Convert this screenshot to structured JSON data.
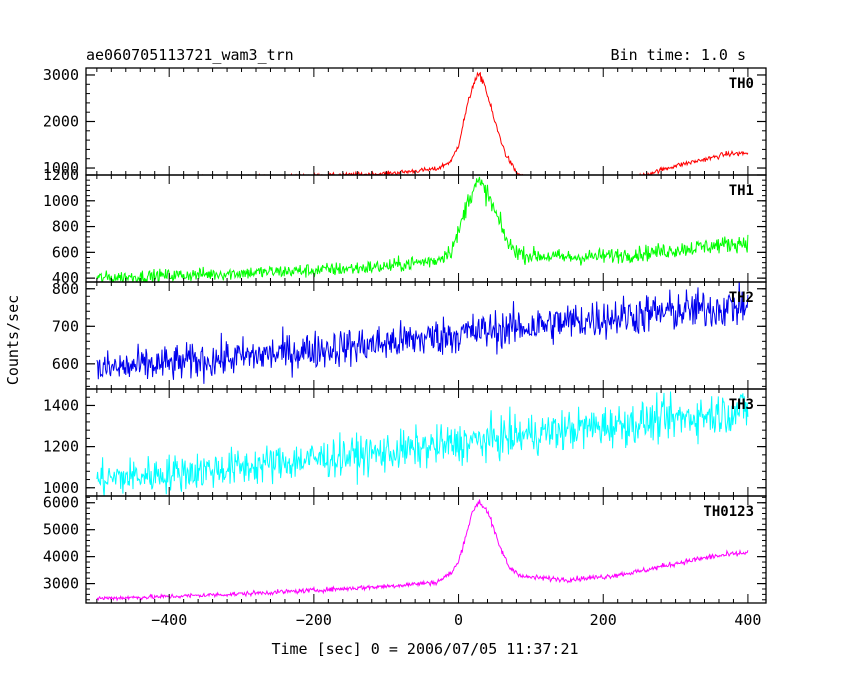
{
  "chart_data": {
    "type": "line",
    "title": "ae060705113721_wam3_trn",
    "bin_time": "Bin time: 1.0 s",
    "xlabel": "Time [sec] 0 = 2006/07/05 11:37:21",
    "ylabel": "Counts/sec",
    "xlim": [
      -515,
      425
    ],
    "x_ticks": [
      -400,
      -200,
      0,
      200,
      400
    ],
    "x_tick_labels": [
      "−400",
      "−200",
      "0",
      "200",
      "400"
    ],
    "x_range": [
      -500,
      400
    ],
    "panels": [
      {
        "name": "TH0",
        "color": "#ff0000",
        "ylim": [
          850,
          3150
        ],
        "y_ticks": [
          1000,
          2000,
          3000
        ],
        "y_tick_labels": [
          "1000",
          "2000",
          "3000"
        ],
        "noise": 28,
        "profile": [
          [
            -500,
            750
          ],
          [
            -400,
            780
          ],
          [
            -300,
            800
          ],
          [
            -200,
            830
          ],
          [
            -100,
            880
          ],
          [
            -30,
            980
          ],
          [
            -10,
            1150
          ],
          [
            0,
            1500
          ],
          [
            10,
            2200
          ],
          [
            20,
            2800
          ],
          [
            28,
            3000
          ],
          [
            35,
            2850
          ],
          [
            50,
            2000
          ],
          [
            65,
            1300
          ],
          [
            80,
            900
          ],
          [
            100,
            730
          ],
          [
            150,
            680
          ],
          [
            200,
            700
          ],
          [
            250,
            820
          ],
          [
            300,
            1050
          ],
          [
            350,
            1220
          ],
          [
            370,
            1300
          ],
          [
            400,
            1320
          ]
        ]
      },
      {
        "name": "TH1",
        "color": "#00ff00",
        "ylim": [
          370,
          1200
        ],
        "y_ticks": [
          400,
          600,
          800,
          1000,
          1200
        ],
        "y_tick_labels": [
          "400",
          "600",
          "800",
          "1000",
          "1200"
        ],
        "noise": 25,
        "profile": [
          [
            -500,
            400
          ],
          [
            -400,
            420
          ],
          [
            -300,
            440
          ],
          [
            -200,
            460
          ],
          [
            -100,
            490
          ],
          [
            -30,
            540
          ],
          [
            -10,
            620
          ],
          [
            0,
            750
          ],
          [
            10,
            950
          ],
          [
            20,
            1100
          ],
          [
            28,
            1140
          ],
          [
            40,
            1050
          ],
          [
            55,
            850
          ],
          [
            70,
            650
          ],
          [
            90,
            580
          ],
          [
            150,
            560
          ],
          [
            200,
            570
          ],
          [
            250,
            590
          ],
          [
            300,
            620
          ],
          [
            350,
            650
          ],
          [
            400,
            680
          ]
        ]
      },
      {
        "name": "TH2",
        "color": "#0000ee",
        "ylim": [
          533,
          818
        ],
        "y_ticks": [
          600,
          700,
          800
        ],
        "y_tick_labels": [
          "600",
          "700",
          "800"
        ],
        "noise": 24,
        "profile": [
          [
            -500,
            585
          ],
          [
            -400,
            600
          ],
          [
            -300,
            618
          ],
          [
            -200,
            637
          ],
          [
            -100,
            655
          ],
          [
            0,
            680
          ],
          [
            100,
            700
          ],
          [
            200,
            722
          ],
          [
            300,
            740
          ],
          [
            400,
            755
          ]
        ]
      },
      {
        "name": "TH3",
        "color": "#00ffff",
        "ylim": [
          960,
          1480
        ],
        "y_ticks": [
          1000,
          1200,
          1400
        ],
        "y_tick_labels": [
          "1000",
          "1200",
          "1400"
        ],
        "noise": 45,
        "profile": [
          [
            -500,
            1040
          ],
          [
            -400,
            1070
          ],
          [
            -300,
            1100
          ],
          [
            -200,
            1140
          ],
          [
            -100,
            1170
          ],
          [
            0,
            1215
          ],
          [
            100,
            1260
          ],
          [
            200,
            1300
          ],
          [
            300,
            1335
          ],
          [
            400,
            1380
          ]
        ]
      },
      {
        "name": "TH0123",
        "color": "#ff00ff",
        "ylim": [
          2280,
          6250
        ],
        "y_ticks": [
          3000,
          4000,
          5000,
          6000
        ],
        "y_tick_labels": [
          "3000",
          "4000",
          "5000",
          "6000"
        ],
        "noise": 55,
        "profile": [
          [
            -500,
            2450
          ],
          [
            -400,
            2520
          ],
          [
            -300,
            2620
          ],
          [
            -200,
            2750
          ],
          [
            -100,
            2900
          ],
          [
            -30,
            3050
          ],
          [
            -10,
            3400
          ],
          [
            0,
            3800
          ],
          [
            10,
            4800
          ],
          [
            20,
            5700
          ],
          [
            28,
            6050
          ],
          [
            40,
            5700
          ],
          [
            55,
            4500
          ],
          [
            70,
            3600
          ],
          [
            90,
            3250
          ],
          [
            150,
            3150
          ],
          [
            200,
            3250
          ],
          [
            250,
            3450
          ],
          [
            300,
            3750
          ],
          [
            350,
            4000
          ],
          [
            400,
            4150
          ]
        ]
      }
    ]
  }
}
